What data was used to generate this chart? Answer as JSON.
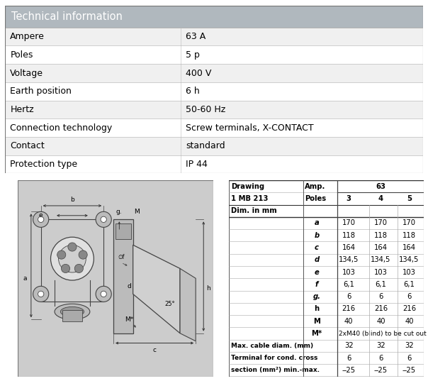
{
  "title": "Technical information",
  "title_bg": "#b0b8be",
  "tech_rows": [
    [
      "Ampere",
      "63 A"
    ],
    [
      "Poles",
      "5 p"
    ],
    [
      "Voltage",
      "400 V"
    ],
    [
      "Earth position",
      "6 h"
    ],
    [
      "Hertz",
      "50-60 Hz"
    ],
    [
      "Connection technology",
      "Screw terminals, X-CONTACT"
    ],
    [
      "Contact",
      "standard"
    ],
    [
      "Protection type",
      "IP 44"
    ]
  ],
  "row_bg_odd": "#f0f0f0",
  "row_bg_even": "#ffffff",
  "col_split": 0.42,
  "dim_rows": [
    [
      "a",
      "170",
      "170",
      "170"
    ],
    [
      "b",
      "118",
      "118",
      "118"
    ],
    [
      "c",
      "164",
      "164",
      "164"
    ],
    [
      "d",
      "134,5",
      "134,5",
      "134,5"
    ],
    [
      "e",
      "103",
      "103",
      "103"
    ],
    [
      "f",
      "6,1",
      "6,1",
      "6,1"
    ],
    [
      "g.",
      "6",
      "6",
      "6"
    ],
    [
      "h",
      "216",
      "216",
      "216"
    ],
    [
      "M",
      "40",
      "40",
      "40"
    ],
    [
      "M*",
      "2xM40 (blind) to be cut out",
      "",
      ""
    ]
  ],
  "extra_rows": [
    [
      "Max. cable diam. (mm)",
      "32",
      "32",
      "32"
    ],
    [
      "Terminal for cond. cross",
      "6",
      "6",
      "6"
    ],
    [
      "section (mm²) min.-max.",
      "‒25",
      "‒25",
      "‒25"
    ]
  ],
  "fig_width": 6.04,
  "fig_height": 5.37,
  "dpi": 100
}
